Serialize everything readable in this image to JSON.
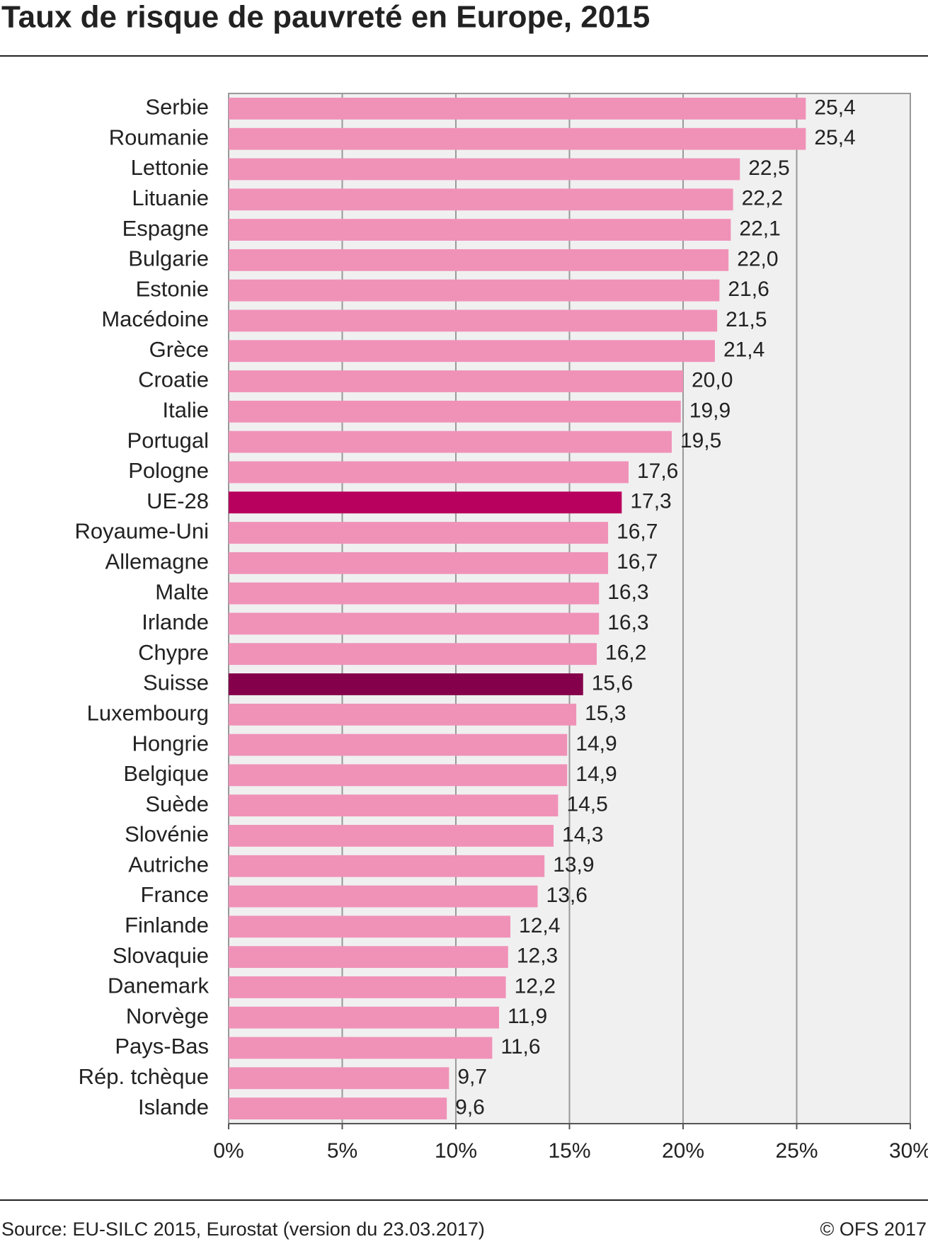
{
  "chart_data": {
    "type": "hbar",
    "title": "Taux de risque de pauvreté en Europe, 2015",
    "categories": [
      "Serbie",
      "Roumanie",
      "Lettonie",
      "Lituanie",
      "Espagne",
      "Bulgarie",
      "Estonie",
      "Macédoine",
      "Grèce",
      "Croatie",
      "Italie",
      "Portugal",
      "Pologne",
      "UE-28",
      "Royaume-Uni",
      "Allemagne",
      "Malte",
      "Irlande",
      "Chypre",
      "Suisse",
      "Luxembourg",
      "Hongrie",
      "Belgique",
      "Suède",
      "Slovénie",
      "Autriche",
      "France",
      "Finlande",
      "Slovaquie",
      "Danemark",
      "Norvège",
      "Pays-Bas",
      "Rép. tchèque",
      "Islande"
    ],
    "values": [
      25.4,
      25.4,
      22.5,
      22.2,
      22.1,
      22.0,
      21.6,
      21.5,
      21.4,
      20.0,
      19.9,
      19.5,
      17.6,
      17.3,
      16.7,
      16.7,
      16.3,
      16.3,
      16.2,
      15.6,
      15.3,
      14.9,
      14.9,
      14.5,
      14.3,
      13.9,
      13.6,
      12.4,
      12.3,
      12.2,
      11.9,
      11.6,
      9.7,
      9.6
    ],
    "value_labels": [
      "25,4",
      "25,4",
      "22,5",
      "22,2",
      "22,1",
      "22,0",
      "21,6",
      "21,5",
      "21,4",
      "20,0",
      "19,9",
      "19,5",
      "17,6",
      "17,3",
      "16,7",
      "16,7",
      "16,3",
      "16,3",
      "16,2",
      "15,6",
      "15,3",
      "14,9",
      "14,9",
      "14,5",
      "14,3",
      "13,9",
      "13,6",
      "12,4",
      "12,3",
      "12,2",
      "11,9",
      "11,6",
      "9,7",
      "9,6"
    ],
    "colors": [
      "#f092b8",
      "#f092b8",
      "#f092b8",
      "#f092b8",
      "#f092b8",
      "#f092b8",
      "#f092b8",
      "#f092b8",
      "#f092b8",
      "#f092b8",
      "#f092b8",
      "#f092b8",
      "#f092b8",
      "#b8005e",
      "#f092b8",
      "#f092b8",
      "#f092b8",
      "#f092b8",
      "#f092b8",
      "#85004a",
      "#f092b8",
      "#f092b8",
      "#f092b8",
      "#f092b8",
      "#f092b8",
      "#f092b8",
      "#f092b8",
      "#f092b8",
      "#f092b8",
      "#f092b8",
      "#f092b8",
      "#f092b8",
      "#f092b8",
      "#f092b8"
    ],
    "xlim": [
      0,
      30
    ],
    "xticks": [
      {
        "value": 0,
        "label": "0%"
      },
      {
        "value": 5,
        "label": "5%"
      },
      {
        "value": 10,
        "label": "10%"
      },
      {
        "value": 15,
        "label": "15%"
      },
      {
        "value": 20,
        "label": "20%"
      },
      {
        "value": 25,
        "label": "25%"
      },
      {
        "value": 30,
        "label": "30%"
      }
    ],
    "grid": true,
    "source": "Source: EU-SILC 2015, Eurostat (version du 23.03.2017)",
    "credit": "© OFS 2017"
  }
}
